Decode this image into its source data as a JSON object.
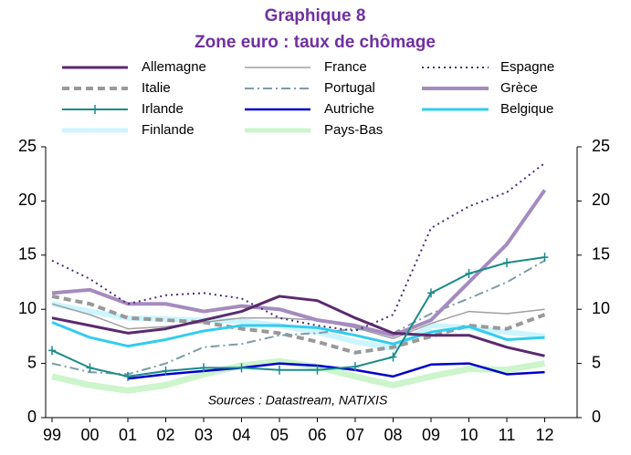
{
  "chart_data": {
    "type": "line",
    "title": "Graphique 8",
    "subtitle": "Zone euro : taux de chômage",
    "annotation": "Sources : Datastream, NATIXIS",
    "categories": [
      "99",
      "00",
      "01",
      "02",
      "03",
      "04",
      "05",
      "06",
      "07",
      "08",
      "09",
      "10",
      "11",
      "12"
    ],
    "ylim": [
      0,
      25
    ],
    "yticks": [
      0,
      5,
      10,
      15,
      20,
      25
    ],
    "y2lim": [
      0,
      25
    ],
    "y2ticks": [
      0,
      5,
      10,
      15,
      20,
      25
    ],
    "legend": "top",
    "series": [
      {
        "name": "Allemagne",
        "color": "#5b2a6e",
        "width": 3,
        "dash": "none",
        "values": [
          9.2,
          8.5,
          7.8,
          8.2,
          9.0,
          9.8,
          11.2,
          10.8,
          9.2,
          7.8,
          7.6,
          7.6,
          6.5,
          5.7
        ]
      },
      {
        "name": "France",
        "color": "#a0a0a0",
        "width": 1.5,
        "dash": "none",
        "values": [
          10.5,
          9.5,
          8.2,
          8.4,
          8.8,
          9.2,
          9.2,
          9.0,
          8.3,
          7.3,
          8.7,
          9.8,
          9.6,
          10.0
        ]
      },
      {
        "name": "Espagne",
        "color": "#4b2a7a",
        "width": 2,
        "dash": "2 4",
        "values": [
          14.5,
          12.8,
          10.5,
          11.3,
          11.5,
          11.0,
          9.2,
          8.5,
          8.0,
          9.5,
          17.5,
          19.5,
          20.8,
          23.5
        ]
      },
      {
        "name": "Italie",
        "color": "#999999",
        "width": 4,
        "dash": "8 5",
        "values": [
          11.2,
          10.5,
          9.2,
          9.0,
          8.8,
          8.2,
          7.8,
          7.0,
          6.0,
          6.5,
          7.5,
          8.5,
          8.2,
          9.5
        ]
      },
      {
        "name": "Portugal",
        "color": "#7f9ca6",
        "width": 2,
        "dash": "10 4 2 4",
        "values": [
          5.0,
          4.2,
          4.0,
          5.0,
          6.5,
          6.8,
          7.6,
          7.8,
          8.2,
          7.8,
          9.6,
          11.0,
          12.5,
          14.5
        ]
      },
      {
        "name": "Grèce",
        "color": "#a58bbf",
        "width": 4,
        "dash": "none",
        "values": [
          11.5,
          11.8,
          10.5,
          10.5,
          9.8,
          10.3,
          10.0,
          9.0,
          8.5,
          7.6,
          9.0,
          12.5,
          16.0,
          21.0
        ]
      },
      {
        "name": "Irlande",
        "color": "#1a8a8a",
        "width": 2,
        "dash": "none",
        "marker": "plus",
        "values": [
          6.2,
          4.6,
          3.8,
          4.3,
          4.6,
          4.6,
          4.4,
          4.4,
          4.7,
          5.6,
          11.5,
          13.3,
          14.3,
          14.8
        ]
      },
      {
        "name": "Autriche",
        "color": "#0000cc",
        "width": 2.5,
        "dash": "none",
        "values": [
          null,
          null,
          3.6,
          4.0,
          4.3,
          4.6,
          5.0,
          4.8,
          4.4,
          3.8,
          4.9,
          5.0,
          4.0,
          4.2
        ]
      },
      {
        "name": "Belgique",
        "color": "#33ccee",
        "width": 3,
        "dash": "none",
        "values": [
          8.8,
          7.4,
          6.6,
          7.2,
          8.0,
          8.5,
          8.5,
          8.3,
          7.6,
          6.8,
          7.9,
          8.4,
          7.2,
          7.4
        ]
      },
      {
        "name": "Finlande",
        "color": "#ccf5ff",
        "width": 6,
        "dash": "none",
        "values": [
          10.5,
          9.8,
          9.2,
          9.1,
          9.0,
          8.9,
          8.5,
          7.9,
          7.0,
          6.4,
          8.5,
          8.3,
          7.9,
          7.5
        ]
      },
      {
        "name": "Pays-Bas",
        "color": "#ccf5cc",
        "width": 7,
        "dash": "none",
        "values": [
          3.8,
          3.0,
          2.5,
          3.0,
          4.0,
          4.8,
          5.2,
          4.7,
          3.8,
          3.0,
          3.8,
          4.5,
          4.4,
          5.0
        ]
      }
    ]
  }
}
